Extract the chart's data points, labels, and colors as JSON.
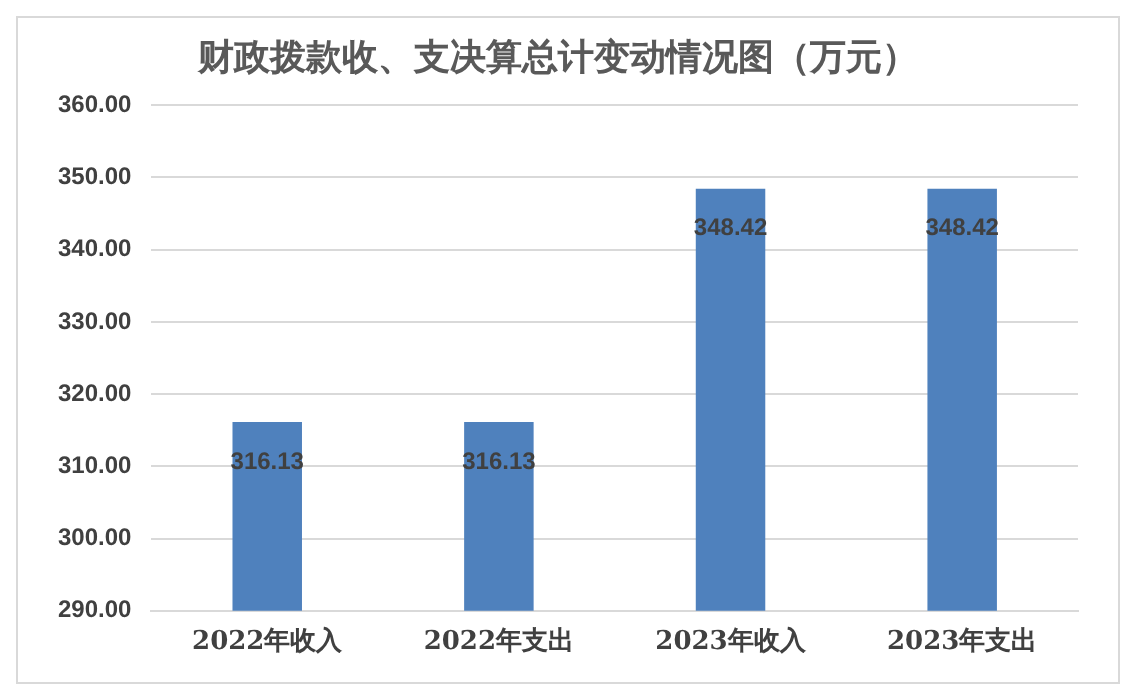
{
  "chart_data": {
    "type": "bar",
    "title": "财政拨款收、支决算总计变动情况图（万元）",
    "categories": [
      "2022年收入",
      "2022年支出",
      "2023年收入",
      "2023年支出"
    ],
    "values": [
      316.13,
      316.13,
      348.42,
      348.42
    ],
    "color": "#4f81bd",
    "ylim": [
      290,
      360
    ],
    "yticks": [
      {
        "value": 290,
        "label": "290.00"
      },
      {
        "value": 300,
        "label": "300.00"
      },
      {
        "value": 310,
        "label": "310.00"
      },
      {
        "value": 320,
        "label": "320.00"
      },
      {
        "value": 330,
        "label": "330.00"
      },
      {
        "value": 340,
        "label": "340.00"
      },
      {
        "value": 350,
        "label": "350.00"
      },
      {
        "value": 360,
        "label": "360.00"
      }
    ],
    "grid": "y",
    "data_labels": true,
    "legend": false
  }
}
